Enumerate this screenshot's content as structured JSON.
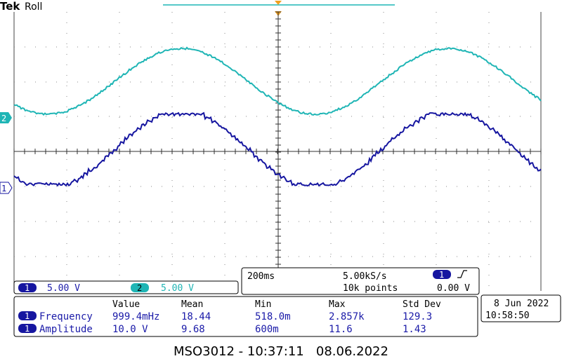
{
  "header": {
    "brand": "Tek",
    "mode": "Roll"
  },
  "channels": {
    "ch1": {
      "id": "1",
      "color": "#1616a0",
      "scale": "5.00 V"
    },
    "ch2": {
      "id": "2",
      "color": "#1fb5b5",
      "scale": "5.00 V"
    }
  },
  "timebase": {
    "time_per_div": "200ms",
    "sample_rate": "5.00kS/s",
    "record_length": "10k points",
    "trigger_channel": "1",
    "trigger_level": "0.00 V"
  },
  "measurements": {
    "headers": [
      "Value",
      "Mean",
      "Min",
      "Max",
      "Std Dev"
    ],
    "rows": [
      {
        "channel": "1",
        "name": "Frequency",
        "value": "999.4mHz",
        "mean": "18.44",
        "min": "518.0m",
        "max": "2.857k",
        "std": "129.3"
      },
      {
        "channel": "1",
        "name": "Amplitude",
        "value": "10.0 V",
        "mean": "9.68",
        "min": "600m",
        "max": "11.6",
        "std": "1.43"
      }
    ]
  },
  "clock": {
    "date": "8 Jun 2022",
    "time": "10:58:50"
  },
  "footer": {
    "caption": "MSO3012 - 10:37:11   08.06.2022"
  }
}
